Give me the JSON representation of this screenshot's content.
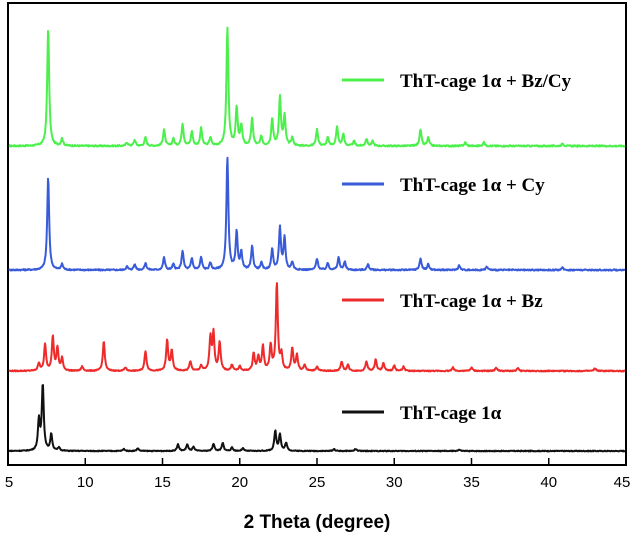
{
  "chart_data": {
    "type": "line",
    "title": "",
    "xlabel": "2 Theta (degree)",
    "ylabel": "",
    "xlim": [
      5,
      45
    ],
    "x_ticks": [
      5,
      10,
      15,
      20,
      25,
      30,
      35,
      40,
      45
    ],
    "y_ticks_visible": false,
    "grid": false,
    "legend": "inline-right-of-traces",
    "series": [
      {
        "name": "ThT-cage 1α + Bz/Cy",
        "color": "#4cf04c",
        "peaks": [
          [
            7.6,
            1.0
          ],
          [
            8.5,
            0.06
          ],
          [
            12.7,
            0.03
          ],
          [
            13.2,
            0.05
          ],
          [
            13.9,
            0.07
          ],
          [
            15.1,
            0.14
          ],
          [
            15.7,
            0.06
          ],
          [
            16.3,
            0.19
          ],
          [
            16.9,
            0.12
          ],
          [
            17.5,
            0.15
          ],
          [
            18.1,
            0.07
          ],
          [
            19.2,
            1.0
          ],
          [
            19.8,
            0.32
          ],
          [
            20.1,
            0.17
          ],
          [
            20.8,
            0.23
          ],
          [
            21.4,
            0.08
          ],
          [
            22.1,
            0.23
          ],
          [
            22.6,
            0.41
          ],
          [
            22.9,
            0.25
          ],
          [
            23.4,
            0.07
          ],
          [
            25.0,
            0.14
          ],
          [
            25.7,
            0.07
          ],
          [
            26.3,
            0.16
          ],
          [
            26.7,
            0.1
          ],
          [
            27.4,
            0.04
          ],
          [
            28.2,
            0.06
          ],
          [
            28.6,
            0.04
          ],
          [
            31.7,
            0.14
          ],
          [
            32.2,
            0.07
          ],
          [
            34.6,
            0.03
          ],
          [
            35.8,
            0.03
          ],
          [
            40.9,
            0.02
          ]
        ]
      },
      {
        "name": "ThT-cage 1α + Cy",
        "color": "#3a5bd9",
        "peaks": [
          [
            7.6,
            0.82
          ],
          [
            8.5,
            0.05
          ],
          [
            12.7,
            0.03
          ],
          [
            13.2,
            0.05
          ],
          [
            13.9,
            0.06
          ],
          [
            15.1,
            0.11
          ],
          [
            15.7,
            0.05
          ],
          [
            16.3,
            0.17
          ],
          [
            16.9,
            0.1
          ],
          [
            17.5,
            0.11
          ],
          [
            18.1,
            0.06
          ],
          [
            19.2,
            1.0
          ],
          [
            19.8,
            0.33
          ],
          [
            20.1,
            0.15
          ],
          [
            20.8,
            0.21
          ],
          [
            21.4,
            0.06
          ],
          [
            22.1,
            0.18
          ],
          [
            22.6,
            0.37
          ],
          [
            22.9,
            0.28
          ],
          [
            23.4,
            0.07
          ],
          [
            25.0,
            0.1
          ],
          [
            25.7,
            0.06
          ],
          [
            26.4,
            0.11
          ],
          [
            26.8,
            0.07
          ],
          [
            28.3,
            0.05
          ],
          [
            31.7,
            0.1
          ],
          [
            32.2,
            0.05
          ],
          [
            34.2,
            0.04
          ],
          [
            36.0,
            0.03
          ],
          [
            40.9,
            0.02
          ]
        ]
      },
      {
        "name": "ThT-cage 1α + Bz",
        "color": "#ee2b2b",
        "peaks": [
          [
            7.0,
            0.09
          ],
          [
            7.4,
            0.3
          ],
          [
            7.9,
            0.39
          ],
          [
            8.2,
            0.26
          ],
          [
            8.5,
            0.14
          ],
          [
            9.8,
            0.05
          ],
          [
            11.2,
            0.34
          ],
          [
            12.6,
            0.04
          ],
          [
            13.9,
            0.23
          ],
          [
            15.3,
            0.35
          ],
          [
            15.6,
            0.23
          ],
          [
            16.8,
            0.11
          ],
          [
            17.5,
            0.06
          ],
          [
            18.1,
            0.37
          ],
          [
            18.3,
            0.42
          ],
          [
            18.7,
            0.33
          ],
          [
            19.5,
            0.07
          ],
          [
            20.0,
            0.05
          ],
          [
            20.9,
            0.2
          ],
          [
            21.2,
            0.16
          ],
          [
            21.5,
            0.28
          ],
          [
            22.0,
            0.29
          ],
          [
            22.4,
            1.0
          ],
          [
            22.7,
            0.18
          ],
          [
            23.4,
            0.26
          ],
          [
            23.7,
            0.18
          ],
          [
            24.2,
            0.07
          ],
          [
            25.0,
            0.05
          ],
          [
            26.6,
            0.11
          ],
          [
            27.0,
            0.07
          ],
          [
            28.2,
            0.11
          ],
          [
            28.8,
            0.13
          ],
          [
            29.3,
            0.09
          ],
          [
            30.0,
            0.06
          ],
          [
            30.6,
            0.05
          ],
          [
            33.8,
            0.04
          ],
          [
            35.0,
            0.04
          ],
          [
            36.6,
            0.04
          ],
          [
            38.0,
            0.03
          ],
          [
            43.0,
            0.03
          ]
        ]
      },
      {
        "name": "ThT-cage 1α",
        "color": "#111111",
        "peaks": [
          [
            7.0,
            0.45
          ],
          [
            7.25,
            1.0
          ],
          [
            7.8,
            0.25
          ],
          [
            8.3,
            0.05
          ],
          [
            12.5,
            0.03
          ],
          [
            13.4,
            0.04
          ],
          [
            16.0,
            0.1
          ],
          [
            16.6,
            0.1
          ],
          [
            17.0,
            0.06
          ],
          [
            18.3,
            0.11
          ],
          [
            18.9,
            0.12
          ],
          [
            19.5,
            0.05
          ],
          [
            20.2,
            0.04
          ],
          [
            22.3,
            0.3
          ],
          [
            22.6,
            0.25
          ],
          [
            23.0,
            0.12
          ],
          [
            26.1,
            0.03
          ],
          [
            27.5,
            0.03
          ],
          [
            34.2,
            0.02
          ]
        ]
      }
    ]
  }
}
